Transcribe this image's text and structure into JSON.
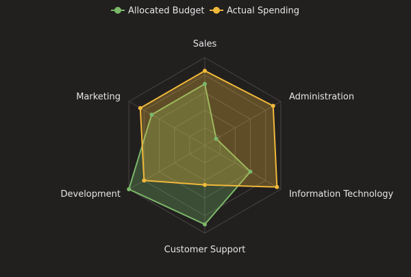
{
  "chart_data": {
    "type": "radar",
    "axes": [
      "Sales",
      "Administration",
      "Information Technology",
      "Customer Support",
      "Development",
      "Marketing"
    ],
    "range": [
      0,
      100
    ],
    "grid": true,
    "legend_position": "top",
    "series": [
      {
        "name": "Allocated Budget",
        "values": [
          70,
          15,
          60,
          90,
          100,
          70
        ],
        "color": "#7cb86a"
      },
      {
        "name": "Actual Spending",
        "values": [
          85,
          90,
          95,
          45,
          80,
          85
        ],
        "color": "#f0b93a"
      }
    ],
    "colors": {
      "background": "#221f1f",
      "grid": "#4a4646",
      "text": "#e6e6e6"
    }
  }
}
